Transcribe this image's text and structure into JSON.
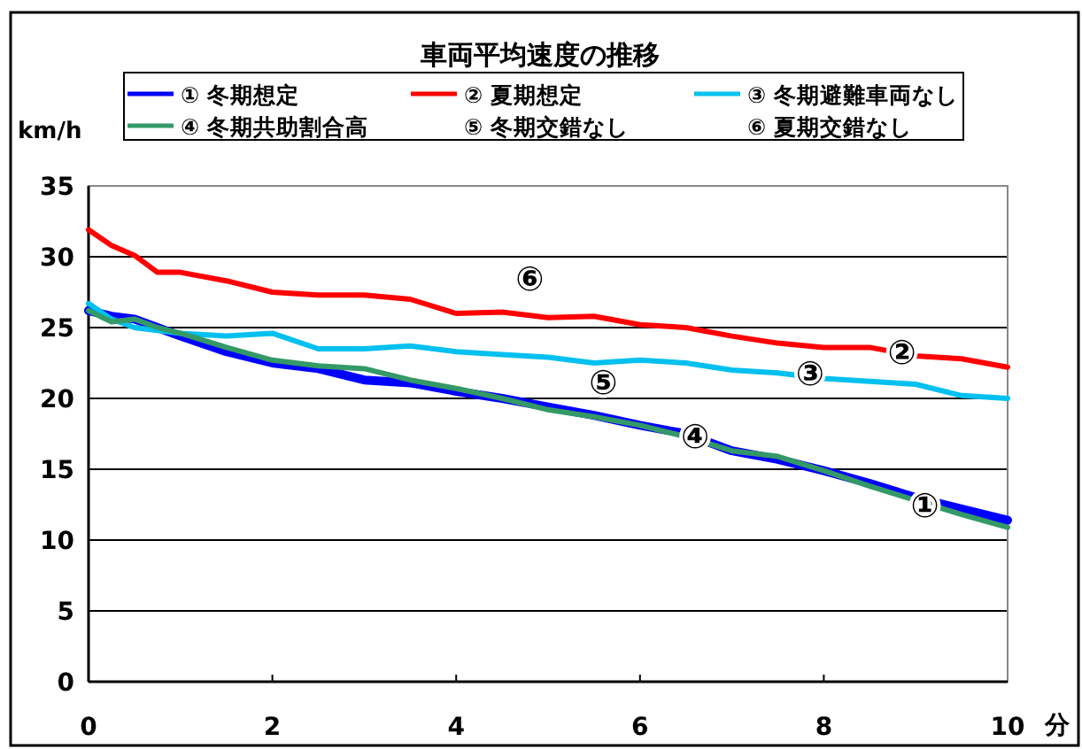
{
  "chart_data": {
    "type": "line",
    "title": "車両平均速度の推移",
    "xlabel": "分",
    "ylabel": "km/h",
    "xlim": [
      0,
      10
    ],
    "xticks": [
      0,
      2,
      4,
      6,
      8,
      10
    ],
    "ylim": [
      0,
      35
    ],
    "yticks": [
      0,
      5,
      10,
      15,
      20,
      25,
      30,
      35
    ],
    "grid": "y",
    "legend": "top",
    "x": [
      0,
      0.25,
      0.5,
      0.75,
      1,
      1.5,
      2,
      2.5,
      3,
      3.5,
      4,
      4.5,
      5,
      5.5,
      6,
      6.5,
      7,
      7.5,
      8,
      8.5,
      9,
      9.5,
      10
    ],
    "series": [
      {
        "name": "① 冬期想定",
        "color": "#0000ff",
        "values": [
          26.2,
          25.8,
          25.6,
          25.0,
          24.4,
          23.3,
          22.5,
          22.1,
          21.3,
          21.1,
          20.5,
          20.0,
          19.4,
          18.8,
          18.1,
          17.5,
          16.3,
          15.7,
          14.9,
          14.0,
          13.0,
          12.2,
          11.4
        ]
      },
      {
        "name": "② 夏期想定",
        "color": "#ff0000",
        "values": [
          31.9,
          30.8,
          30.1,
          28.9,
          28.9,
          28.3,
          27.5,
          27.3,
          27.3,
          27.0,
          26.0,
          26.1,
          25.7,
          25.8,
          25.2,
          25.0,
          24.4,
          23.9,
          23.6,
          23.6,
          23.0,
          22.8,
          22.2
        ]
      },
      {
        "name": "③ 冬期避難車両なし",
        "color": "#00c0f0",
        "values": [
          26.7,
          25.6,
          25.0,
          24.8,
          24.6,
          24.4,
          24.6,
          23.5,
          23.5,
          23.7,
          23.3,
          23.1,
          22.9,
          22.5,
          22.7,
          22.5,
          22.0,
          21.8,
          21.4,
          21.2,
          21.0,
          20.2,
          20.0
        ]
      },
      {
        "name": "④ 冬期共助割合高",
        "color": "#339966",
        "values": [
          26.2,
          25.4,
          25.6,
          25.0,
          24.6,
          23.6,
          22.7,
          22.3,
          22.1,
          21.3,
          20.7,
          20.0,
          19.2,
          18.7,
          18.1,
          17.3,
          16.3,
          15.9,
          14.9,
          13.8,
          12.8,
          11.8,
          10.9
        ]
      }
    ],
    "annotations": [
      "⑤ 冬期交錯なし",
      "⑥ 夏期交錯なし",
      {
        "text": "①",
        "x": 9.1,
        "y": 12.5
      },
      {
        "text": "②",
        "x": 8.85,
        "y": 23.3
      },
      {
        "text": "③",
        "x": 7.85,
        "y": 21.8
      },
      {
        "text": "④",
        "x": 6.6,
        "y": 17.4
      },
      "⑤",
      "⑥"
    ]
  }
}
